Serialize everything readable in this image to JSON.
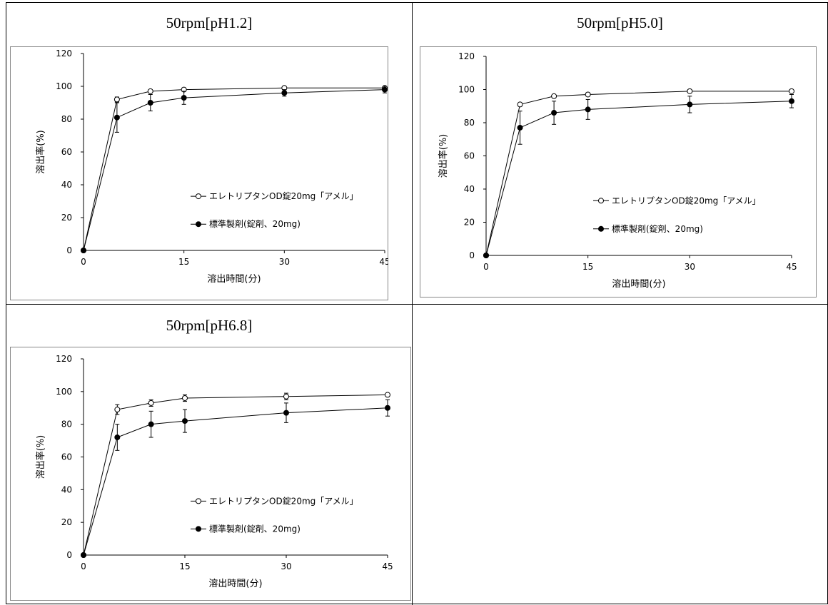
{
  "panels": [
    {
      "title": "50rpm[pH1.2]",
      "chart_data": {
        "type": "line",
        "xlabel": "溶出時間(分)",
        "ylabel": "溶出率(%)",
        "xlim": [
          0,
          45
        ],
        "ylim": [
          0,
          120
        ],
        "xticks": [
          0,
          15,
          30,
          45
        ],
        "yticks": [
          0,
          20,
          40,
          60,
          80,
          100,
          120
        ],
        "legend_placement": "lower-right",
        "series": [
          {
            "name": "エレトリプタンOD錠20mg「アメル」",
            "marker": "open-circle",
            "x": [
              0,
              5,
              10,
              15,
              30,
              45
            ],
            "y": [
              0,
              92,
              97,
              98,
              99,
              99
            ],
            "err": [
              0,
              1.5,
              1,
              1,
              1,
              1
            ]
          },
          {
            "name": "標準製剤(錠剤、20mg)",
            "marker": "filled-circle",
            "x": [
              0,
              5,
              10,
              15,
              30,
              45
            ],
            "y": [
              0,
              81,
              90,
              93,
              96,
              98
            ],
            "err": [
              0,
              9,
              5,
              4,
              2,
              2
            ]
          }
        ]
      }
    },
    {
      "title": "50rpm[pH5.0]",
      "chart_data": {
        "type": "line",
        "xlabel": "溶出時間(分)",
        "ylabel": "溶出率(%)",
        "xlim": [
          0,
          45
        ],
        "ylim": [
          0,
          120
        ],
        "xticks": [
          0,
          15,
          30,
          45
        ],
        "yticks": [
          0,
          20,
          40,
          60,
          80,
          100,
          120
        ],
        "legend_placement": "lower-right",
        "series": [
          {
            "name": "エレトリプタンOD錠20mg「アメル」",
            "marker": "open-circle",
            "x": [
              0,
              5,
              10,
              15,
              30,
              45
            ],
            "y": [
              0,
              91,
              96,
              97,
              99,
              99
            ],
            "err": [
              0,
              1,
              1,
              1,
              1,
              1
            ]
          },
          {
            "name": "標準製剤(錠剤、20mg)",
            "marker": "filled-circle",
            "x": [
              0,
              5,
              10,
              15,
              30,
              45
            ],
            "y": [
              0,
              77,
              86,
              88,
              91,
              93
            ],
            "err": [
              0,
              10,
              7,
              6,
              5,
              4
            ]
          }
        ]
      }
    },
    {
      "title": "50rpm[pH6.8]",
      "chart_data": {
        "type": "line",
        "xlabel": "溶出時間(分)",
        "ylabel": "溶出率(%)",
        "xlim": [
          0,
          45
        ],
        "ylim": [
          0,
          120
        ],
        "xticks": [
          0,
          15,
          30,
          45
        ],
        "yticks": [
          0,
          20,
          40,
          60,
          80,
          100,
          120
        ],
        "legend_placement": "lower-right",
        "series": [
          {
            "name": "エレトリプタンOD錠20mg「アメル」",
            "marker": "open-circle",
            "x": [
              0,
              5,
              10,
              15,
              30,
              45
            ],
            "y": [
              0,
              89,
              93,
              96,
              97,
              98
            ],
            "err": [
              0,
              3,
              2,
              2,
              2,
              1
            ]
          },
          {
            "name": "標準製剤(錠剤、20mg)",
            "marker": "filled-circle",
            "x": [
              0,
              5,
              10,
              15,
              30,
              45
            ],
            "y": [
              0,
              72,
              80,
              82,
              87,
              90
            ],
            "err": [
              0,
              8,
              8,
              7,
              6,
              5
            ]
          }
        ]
      }
    }
  ]
}
